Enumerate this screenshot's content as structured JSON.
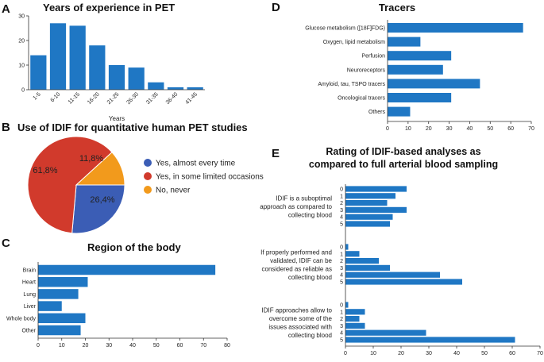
{
  "chart_data": [
    {
      "letter": "A",
      "type": "bar",
      "title": "Years of experience in PET",
      "xlabel": "Years",
      "categories": [
        "1-5",
        "6-10",
        "11-15",
        "16-20",
        "21-25",
        "26-30",
        "31-35",
        "36-40",
        "41-45"
      ],
      "values": [
        14,
        27,
        26,
        18,
        10,
        9,
        3,
        1,
        1
      ],
      "ylim": [
        0,
        30
      ],
      "yticks": [
        0,
        10,
        20,
        30
      ],
      "color": "#1f77c4"
    },
    {
      "letter": "B",
      "type": "pie",
      "title": "Use of IDIF for quantitative human PET studies",
      "slices": [
        {
          "name": "Yes, almost every time",
          "value": 26.4,
          "label": "26,4%",
          "color": "#3b5db5"
        },
        {
          "name": "Yes, in some limited occasions",
          "value": 61.8,
          "label": "61,8%",
          "color": "#d13a2c"
        },
        {
          "name": "No, never",
          "value": 11.8,
          "label": "11,8%",
          "color": "#f29a1c"
        }
      ]
    },
    {
      "letter": "C",
      "type": "bar",
      "orientation": "horizontal",
      "title": "Region of the body",
      "categories": [
        "Brain",
        "Heart",
        "Lung",
        "Liver",
        "Whole body",
        "Other"
      ],
      "values": [
        75,
        21,
        17,
        10,
        20,
        18
      ],
      "xlim": [
        0,
        80
      ],
      "xticks": [
        0,
        10,
        20,
        30,
        40,
        50,
        60,
        70,
        80
      ],
      "color": "#1f77c4"
    },
    {
      "letter": "D",
      "type": "bar",
      "orientation": "horizontal",
      "title": "Tracers",
      "categories": [
        "Glucose metabolism ([18F]FDG)",
        "Oxygen, lipid metabolism",
        "Perfusion",
        "Neuroreceptors",
        "Amyloid, tau, TSPO tracers",
        "Oncological tracers",
        "Others"
      ],
      "values": [
        66,
        16,
        31,
        27,
        45,
        31,
        11
      ],
      "xlim": [
        0,
        70
      ],
      "xticks": [
        0,
        10,
        20,
        30,
        40,
        50,
        60,
        70
      ],
      "color": "#1f77c4"
    },
    {
      "letter": "E",
      "type": "bar",
      "orientation": "horizontal",
      "title": "Rating of IDIF-based analyses as compared to full arterial blood sampling",
      "title_lines": [
        "Rating of IDIF-based analyses as",
        "compared to full arterial blood sampling"
      ],
      "xlim": [
        0,
        70
      ],
      "xticks": [
        0,
        10,
        20,
        30,
        40,
        50,
        60,
        70
      ],
      "color": "#1f77c4",
      "groups": [
        {
          "label_lines": [
            "IDIF is a suboptimal",
            "approach as compared to",
            "collecting blood"
          ],
          "categories": [
            "0",
            "1",
            "2",
            "3",
            "4",
            "5"
          ],
          "values": [
            22,
            18,
            15,
            22,
            17,
            16
          ]
        },
        {
          "label_lines": [
            "If properly performed and",
            "validated, IDIF can be",
            "considered as reliable as",
            "collecting blood"
          ],
          "categories": [
            "0",
            "1",
            "2",
            "3",
            "4",
            "5"
          ],
          "values": [
            1,
            5,
            12,
            16,
            34,
            42
          ]
        },
        {
          "label_lines": [
            "IDIF approaches allow to",
            "overcome some of the",
            "issues associated with",
            "collecting blood"
          ],
          "categories": [
            "0",
            "1",
            "2",
            "3",
            "4",
            "5"
          ],
          "values": [
            1,
            7,
            5,
            7,
            29,
            61
          ]
        }
      ]
    }
  ]
}
